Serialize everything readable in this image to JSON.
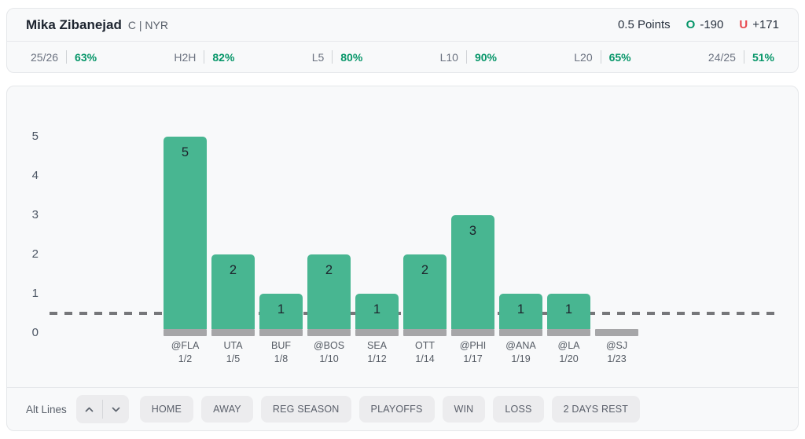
{
  "header": {
    "player_name": "Mika Zibanejad",
    "position_team": "C | NYR",
    "line_label": "0.5 Points",
    "over_symbol": "O",
    "over_odds": "-190",
    "under_symbol": "U",
    "under_odds": "+171"
  },
  "stats": [
    {
      "label": "25/26",
      "value": "63%"
    },
    {
      "label": "H2H",
      "value": "82%"
    },
    {
      "label": "L5",
      "value": "80%"
    },
    {
      "label": "L10",
      "value": "90%"
    },
    {
      "label": "L20",
      "value": "65%"
    },
    {
      "label": "24/25",
      "value": "51%"
    }
  ],
  "chart_data": {
    "type": "bar",
    "title": "",
    "xlabel": "",
    "ylabel": "",
    "categories": [
      "@FLA",
      "UTA",
      "BUF",
      "@BOS",
      "SEA",
      "OTT",
      "@PHI",
      "@ANA",
      "@LA",
      "@SJ"
    ],
    "dates": [
      "1/2",
      "1/5",
      "1/8",
      "1/10",
      "1/12",
      "1/14",
      "1/17",
      "1/19",
      "1/20",
      "1/23"
    ],
    "values": [
      5,
      2,
      1,
      2,
      1,
      2,
      3,
      1,
      1,
      0
    ],
    "y_ticks": [
      0,
      1,
      2,
      3,
      4,
      5
    ],
    "ylim": [
      0,
      5.6
    ],
    "reference_line": 0.5,
    "grid": false,
    "legend": "none",
    "bar_color": "#48b691",
    "base_color": "#a6a6a8",
    "reference_line_color": "#76777a"
  },
  "toolbar": {
    "alt_lines_label": "Alt Lines",
    "filters": [
      "HOME",
      "AWAY",
      "REG SEASON",
      "PLAYOFFS",
      "WIN",
      "LOSS",
      "2 DAYS REST"
    ]
  },
  "colors": {
    "accent_green": "#079669",
    "accent_red": "#e8494f",
    "card_background": "#f8f9fa",
    "card_border": "#e5e7ea"
  }
}
